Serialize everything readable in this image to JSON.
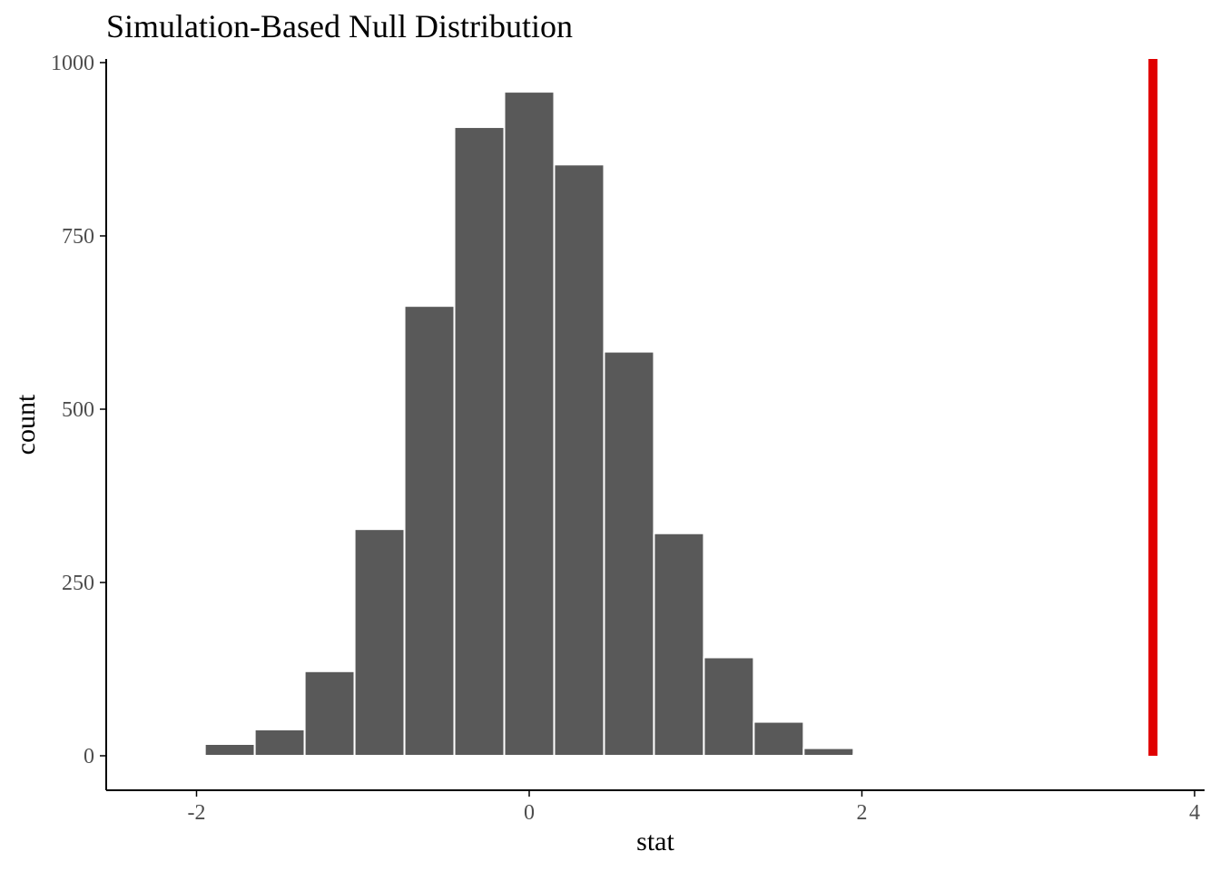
{
  "chart_data": {
    "type": "bar",
    "title": "Simulation-Based Null Distribution",
    "xlabel": "stat",
    "ylabel": "count",
    "xlim": [
      -2.5,
      4
    ],
    "ylim": [
      0,
      1000
    ],
    "x_ticks": [
      -2,
      0,
      2,
      4
    ],
    "x_tick_labels": [
      "-2",
      "0",
      "2",
      "4"
    ],
    "y_ticks": [
      0,
      250,
      500,
      750,
      1000
    ],
    "y_tick_labels": [
      "0",
      "250",
      "500",
      "750",
      "1000"
    ],
    "grid": false,
    "bin_width": 0.3,
    "bins": [
      {
        "center": -2.1,
        "count": 1
      },
      {
        "center": -1.8,
        "count": 17
      },
      {
        "center": -1.5,
        "count": 38
      },
      {
        "center": -1.2,
        "count": 122
      },
      {
        "center": -0.9,
        "count": 327
      },
      {
        "center": -0.6,
        "count": 649
      },
      {
        "center": -0.3,
        "count": 907
      },
      {
        "center": 0.0,
        "count": 958
      },
      {
        "center": 0.3,
        "count": 853
      },
      {
        "center": 0.6,
        "count": 583
      },
      {
        "center": 0.9,
        "count": 321
      },
      {
        "center": 1.2,
        "count": 142
      },
      {
        "center": 1.5,
        "count": 49
      },
      {
        "center": 1.8,
        "count": 11
      },
      {
        "center": 2.1,
        "count": 2
      }
    ],
    "observed_stat": 3.75,
    "colors": {
      "bar_fill": "#595959",
      "bar_outline": "#ffffff",
      "observed_line": "#e00000",
      "axis": "#000000"
    }
  }
}
